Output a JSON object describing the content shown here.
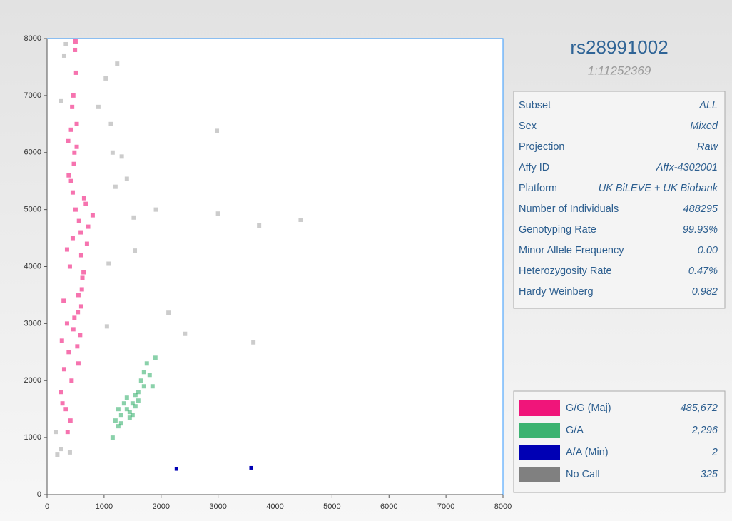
{
  "info": {
    "title": "rs28991002",
    "subtitle": "1:11252369",
    "rows": [
      [
        "Subset",
        "ALL"
      ],
      [
        "Sex",
        "Mixed"
      ],
      [
        "Projection",
        "Raw"
      ],
      [
        "Affy ID",
        "Affx-4302001"
      ],
      [
        "Platform",
        "UK BiLEVE + UK Biobank"
      ],
      [
        "Number of Individuals",
        "488295"
      ],
      [
        "Genotyping Rate",
        "99.93%"
      ],
      [
        "Minor Allele Frequency",
        "0.00"
      ],
      [
        "Heterozygosity Rate",
        "0.47%"
      ],
      [
        "Hardy Weinberg",
        "0.982"
      ]
    ]
  },
  "chart_data": {
    "type": "scatter",
    "xlim": [
      0,
      8000
    ],
    "ylim": [
      0,
      8000
    ],
    "xticks": [
      0,
      1000,
      2000,
      3000,
      4000,
      5000,
      6000,
      7000,
      8000
    ],
    "yticks": [
      0,
      1000,
      2000,
      3000,
      4000,
      5000,
      6000,
      7000,
      8000
    ],
    "series": [
      {
        "name": "G/G (Maj)",
        "color": "#f0157a",
        "count": "485,672",
        "x": [
          400,
          450,
          500,
          550,
          350,
          600,
          420,
          480,
          520,
          380,
          620,
          300,
          700,
          460,
          540,
          250,
          650,
          580,
          330,
          470,
          510,
          430,
          560,
          370,
          610,
          490,
          410,
          530,
          290,
          680,
          440,
          590,
          360,
          640,
          500,
          270,
          720,
          450,
          550,
          380,
          480,
          420,
          260,
          800,
          350,
          600,
          520,
          460
        ],
        "y": [
          4000,
          4500,
          5000,
          3500,
          3000,
          4200,
          5500,
          6000,
          6500,
          2500,
          3800,
          2200,
          4400,
          7000,
          3200,
          1800,
          5200,
          2800,
          1500,
          5800,
          7400,
          2000,
          4800,
          6200,
          3600,
          7800,
          1300,
          2600,
          3400,
          5100,
          6800,
          4600,
          1100,
          3900,
          7950,
          1600,
          4700,
          5300,
          2300,
          5600,
          3100,
          6400,
          2700,
          4900,
          4300,
          3300,
          6100,
          2900
        ]
      },
      {
        "name": "G/A",
        "color": "#3cb371",
        "count": "2,296",
        "x": [
          1200,
          1300,
          1400,
          1500,
          1600,
          1700,
          1800,
          1250,
          1350,
          1450,
          1550,
          1650,
          1750,
          1150,
          1900,
          1500,
          1400,
          1600,
          1300,
          1700,
          1850,
          1450,
          1550,
          1250
        ],
        "y": [
          1300,
          1400,
          1500,
          1600,
          1800,
          1900,
          2100,
          1200,
          1600,
          1450,
          1750,
          2000,
          2300,
          1000,
          2400,
          1400,
          1700,
          1650,
          1250,
          2150,
          1900,
          1350,
          1550,
          1500
        ]
      },
      {
        "name": "A/A (Min)",
        "color": "#0000b4",
        "count": "2",
        "x": [
          2270,
          3580
        ],
        "y": [
          450,
          470
        ]
      },
      {
        "name": "No Call",
        "color": "#808080",
        "count": "325",
        "x": [
          2980,
          3000,
          3720,
          4450,
          2130,
          2420,
          3620,
          1230,
          1520,
          1910,
          1540,
          1120,
          1310,
          1400,
          1150,
          1030,
          300,
          250,
          180,
          250,
          400,
          1080,
          1200,
          900,
          150,
          330,
          1050
        ],
        "y": [
          6380,
          4930,
          4720,
          4820,
          3190,
          2820,
          2670,
          7560,
          4860,
          5000,
          4280,
          6500,
          5930,
          5540,
          6000,
          7300,
          7700,
          6900,
          700,
          800,
          740,
          4050,
          5400,
          6800,
          1100,
          7900,
          2950
        ]
      }
    ]
  }
}
